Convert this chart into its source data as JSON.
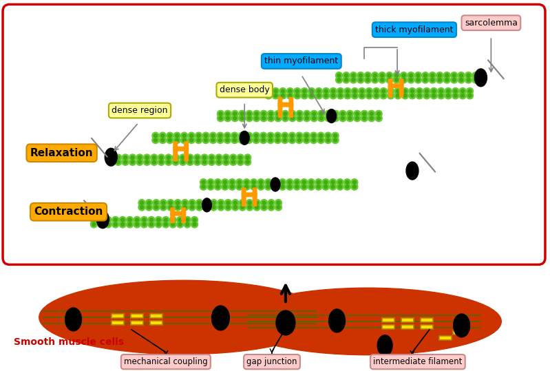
{
  "fig_width": 7.99,
  "fig_height": 5.39,
  "bg_color": "#ffffff",
  "top_box_color": "#cc0000",
  "top_box_bg": "#ffffff",
  "green_color": "#66cc33",
  "green_dark": "#44aa11",
  "orange_color": "#ff9900",
  "black_color": "#000000",
  "yellow_box_bg": "#ffff99",
  "yellow_box_edge": "#aaaa00",
  "cyan_box_bg": "#00aaff",
  "cyan_box_edge": "#0088cc",
  "pink_box_bg": "#ffcccc",
  "pink_box_edge": "#cc8888",
  "orange_box_bg": "#ffaa00",
  "orange_box_edge": "#cc8800",
  "red_text": "#cc0000",
  "bottom_cell_color": "#cc3300",
  "labels": {
    "dense_region": "dense region",
    "dense_body": "dense body",
    "thin_myofilament": "thin myofilament",
    "thick_myofilament": "thick myofilament",
    "sarcolemma": "sarcolemma",
    "relaxation": "Relaxation",
    "contraction": "Contraction",
    "smooth_muscle": "Smooth muscle cells",
    "mechanical_coupling": "mechanical coupling",
    "gap_junction": "gap junction",
    "intermediate_filament": "intermediate filament"
  }
}
